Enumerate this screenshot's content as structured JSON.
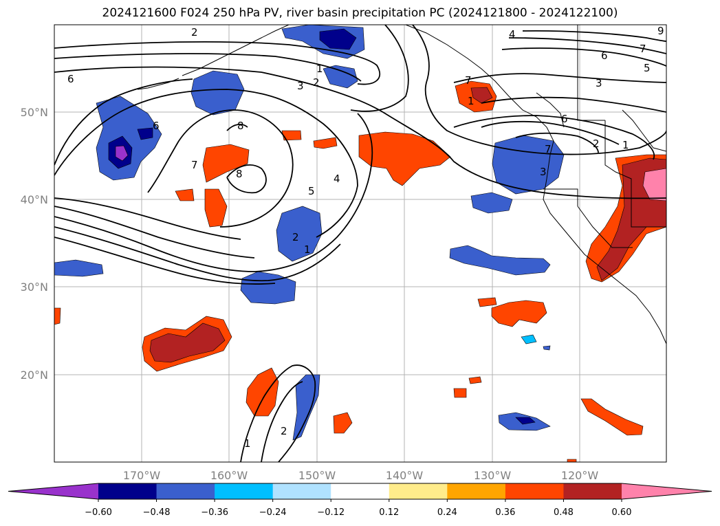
{
  "title": "2024121600 F024 250 hPa PV, river basin precipitation PC (2024121800 - 2024122100)",
  "map": {
    "lat_labels": [
      "50°N",
      "40°N",
      "30°N",
      "20°N"
    ],
    "lon_labels": [
      "170°W",
      "160°W",
      "150°W",
      "140°W",
      "130°W",
      "120°W"
    ],
    "contour_labels": [
      "2",
      "6",
      "6",
      "7",
      "8",
      "8",
      "1",
      "2",
      "3",
      "5",
      "4",
      "2",
      "1",
      "1",
      "2",
      "4",
      "7",
      "6",
      "5",
      "3",
      "7",
      "6",
      "7",
      "3",
      "1",
      "2",
      "1",
      "9"
    ]
  },
  "colorbar": {
    "ticks": [
      "−0.60",
      "−0.48",
      "−0.36",
      "−0.24",
      "−0.12",
      "0.12",
      "0.24",
      "0.36",
      "0.48",
      "0.60"
    ],
    "colors": [
      "#9932cc",
      "#00008b",
      "#3a5fcd",
      "#00bfff",
      "#b0e2ff",
      "#ffffff",
      "#ffec8b",
      "#ffa500",
      "#ff4500",
      "#b22222",
      "#ff82ab"
    ]
  }
}
